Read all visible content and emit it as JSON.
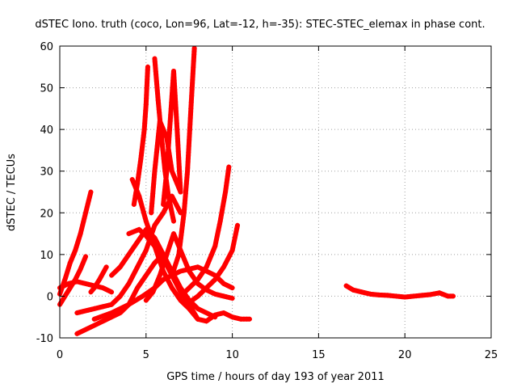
{
  "chart_data": {
    "type": "scatter",
    "title": "dSTEC Iono. truth (coco, Lon=96, Lat=-12, h=-35): STEC-STEC_elemax in phase cont.",
    "xlabel": "GPS time / hours of day 193 of year 2011",
    "ylabel": "dSTEC  / TECUs",
    "xlim": [
      0,
      25
    ],
    "ylim": [
      -10,
      60
    ],
    "xticks": [
      0,
      5,
      10,
      15,
      20,
      25
    ],
    "yticks": [
      -10,
      0,
      10,
      20,
      30,
      40,
      50,
      60
    ],
    "grid": true,
    "marker": "+",
    "color": "#ff0000",
    "series": [
      {
        "x": [
          0.0,
          0.3,
          0.6,
          0.9,
          1.2,
          1.5,
          1.8
        ],
        "y": [
          0.5,
          4.0,
          8.0,
          11.0,
          15.0,
          20.0,
          25.0
        ]
      },
      {
        "x": [
          0.0,
          0.3,
          0.6,
          0.9,
          1.2,
          1.5
        ],
        "y": [
          -2.0,
          0.0,
          2.0,
          4.0,
          6.5,
          9.5
        ]
      },
      {
        "x": [
          0.0,
          0.5,
          1.0,
          1.5,
          2.0,
          2.5,
          3.0
        ],
        "y": [
          2.0,
          3.0,
          3.5,
          3.0,
          2.5,
          2.0,
          1.0
        ]
      },
      {
        "x": [
          1.0,
          1.5,
          2.0,
          2.5,
          3.0,
          3.5,
          4.0,
          4.5,
          5.0,
          5.5,
          6.0,
          6.5,
          7.0
        ],
        "y": [
          -4.0,
          -3.5,
          -3.0,
          -2.5,
          -2.0,
          0.0,
          3.0,
          7.0,
          11.0,
          17.0,
          20.0,
          24.0,
          20.0
        ]
      },
      {
        "x": [
          1.0,
          1.5,
          2.0,
          2.5,
          3.0,
          3.5,
          4.0,
          4.5,
          5.0,
          5.5,
          6.0
        ],
        "y": [
          -9.0,
          -8.0,
          -7.0,
          -6.0,
          -5.0,
          -4.0,
          -2.0,
          2.0,
          5.0,
          8.0,
          10.0
        ]
      },
      {
        "x": [
          1.8,
          2.0,
          2.3,
          2.7
        ],
        "y": [
          1.0,
          2.0,
          4.0,
          7.0
        ]
      },
      {
        "x": [
          2.0,
          3.0,
          4.0,
          4.8,
          5.5,
          6.0,
          6.5,
          7.0,
          7.5,
          8.0,
          8.5,
          9.0,
          9.5,
          10.0
        ],
        "y": [
          -5.5,
          -4.0,
          -2.0,
          0.0,
          2.0,
          4.0,
          5.0,
          6.0,
          6.5,
          7.0,
          6.0,
          5.0,
          3.0,
          2.0
        ]
      },
      {
        "x": [
          3.0,
          3.5,
          4.0,
          4.5,
          5.0,
          5.5,
          6.0,
          6.5,
          7.0,
          7.5,
          8.0,
          8.5,
          9.0
        ],
        "y": [
          5.0,
          7.0,
          10.0,
          13.0,
          16.0,
          14.0,
          10.0,
          6.0,
          2.0,
          -1.0,
          -3.0,
          -4.0,
          -5.0
        ]
      },
      {
        "x": [
          4.0,
          4.3,
          4.6,
          5.0,
          5.5,
          6.0,
          6.5,
          7.0,
          7.5,
          8.0
        ],
        "y": [
          15.0,
          15.5,
          16.0,
          14.5,
          12.0,
          9.0,
          5.0,
          1.0,
          -2.0,
          -5.5
        ]
      },
      {
        "x": [
          4.2,
          4.6,
          5.0,
          5.5,
          6.0,
          6.5,
          7.0,
          7.5,
          8.0,
          8.5,
          9.0,
          9.5,
          10.0,
          10.5,
          11.0
        ],
        "y": [
          28.0,
          24.0,
          18.0,
          12.0,
          6.0,
          2.0,
          -1.0,
          -3.0,
          -5.5,
          -6.0,
          -4.5,
          -4.0,
          -5.0,
          -5.5,
          -5.5
        ]
      },
      {
        "x": [
          4.3,
          4.5,
          4.7,
          4.9,
          5.0,
          5.1
        ],
        "y": [
          22.0,
          27.0,
          33.0,
          40.0,
          46.0,
          55.0
        ]
      },
      {
        "x": [
          5.5,
          5.7,
          5.9,
          6.1,
          6.3,
          6.6
        ],
        "y": [
          57.0,
          47.0,
          38.0,
          30.0,
          24.0,
          18.0
        ]
      },
      {
        "x": [
          5.0,
          5.4,
          5.8,
          6.2,
          6.6,
          7.0,
          7.5,
          8.0,
          8.5,
          9.0,
          9.5,
          10.0
        ],
        "y": [
          -1.0,
          1.0,
          5.0,
          10.0,
          15.0,
          11.0,
          6.0,
          3.0,
          1.5,
          0.5,
          0.0,
          -0.5
        ]
      },
      {
        "x": [
          5.3,
          5.5,
          5.8,
          6.2,
          6.5,
          7.0
        ],
        "y": [
          20.0,
          30.0,
          42.0,
          38.0,
          30.0,
          25.0
        ]
      },
      {
        "x": [
          6.0,
          6.2,
          6.4,
          6.6,
          6.8,
          7.0
        ],
        "y": [
          22.0,
          30.0,
          42.0,
          54.0,
          40.0,
          25.0
        ]
      },
      {
        "x": [
          6.5,
          6.9,
          7.2,
          7.4,
          7.6,
          7.8
        ],
        "y": [
          5.0,
          10.0,
          20.0,
          30.0,
          45.0,
          59.5
        ]
      },
      {
        "x": [
          7.0,
          7.5,
          8.0,
          8.5,
          9.0,
          9.3,
          9.6,
          9.8
        ],
        "y": [
          0.0,
          2.0,
          4.0,
          7.0,
          12.0,
          18.0,
          25.0,
          31.0
        ]
      },
      {
        "x": [
          7.5,
          8.0,
          8.5,
          9.0,
          9.5,
          10.0,
          10.3
        ],
        "y": [
          -1.5,
          0.0,
          2.0,
          4.0,
          7.0,
          11.0,
          17.0
        ]
      },
      {
        "x": [
          16.6,
          17.0,
          17.5,
          18.0,
          18.5,
          19.0,
          19.5,
          20.0,
          20.5,
          21.0,
          21.5,
          22.0,
          22.5,
          22.8
        ],
        "y": [
          2.5,
          1.5,
          1.0,
          0.5,
          0.3,
          0.2,
          0.0,
          -0.2,
          0.0,
          0.2,
          0.4,
          0.8,
          0.0,
          0.0
        ]
      }
    ]
  }
}
